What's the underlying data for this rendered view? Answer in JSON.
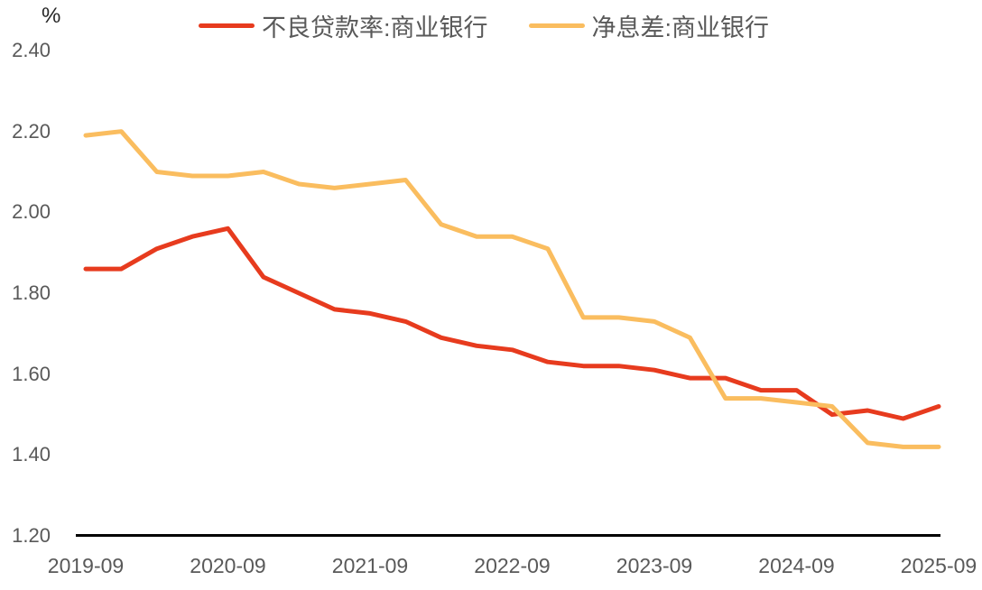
{
  "chart_data": {
    "type": "line",
    "title": "",
    "ylabel": "%",
    "xlabel": "",
    "grid": false,
    "legend_position": "top-center",
    "ylim": [
      1.2,
      2.4
    ],
    "ytick_step": 0.2,
    "ytick_labels": [
      "2.40",
      "2.20",
      "2.00",
      "1.80",
      "1.60",
      "1.40",
      "1.20"
    ],
    "x": [
      "2019-09",
      "2019-12",
      "2020-03",
      "2020-06",
      "2020-09",
      "2020-12",
      "2021-03",
      "2021-06",
      "2021-09",
      "2021-12",
      "2022-03",
      "2022-06",
      "2022-09",
      "2022-12",
      "2023-03",
      "2023-06",
      "2023-09",
      "2023-12",
      "2024-03",
      "2024-06",
      "2024-09",
      "2024-12",
      "2025-03",
      "2025-06",
      "2025-09"
    ],
    "xtick_labels": [
      "2019-09",
      "2020-09",
      "2021-09",
      "2022-09",
      "2023-09",
      "2024-09",
      "2025-09"
    ],
    "series": [
      {
        "name": "不良贷款率:商业银行",
        "color": "#E73B1E",
        "values": [
          1.86,
          1.86,
          1.91,
          1.94,
          1.96,
          1.84,
          1.8,
          1.76,
          1.75,
          1.73,
          1.69,
          1.67,
          1.66,
          1.63,
          1.62,
          1.62,
          1.61,
          1.59,
          1.59,
          1.56,
          1.56,
          1.5,
          1.51,
          1.49,
          1.52
        ]
      },
      {
        "name": "净息差:商业银行",
        "color": "#FABD5F",
        "values": [
          2.19,
          2.2,
          2.1,
          2.09,
          2.09,
          2.1,
          2.07,
          2.06,
          2.07,
          2.08,
          1.97,
          1.94,
          1.94,
          1.91,
          1.74,
          1.74,
          1.73,
          1.69,
          1.54,
          1.54,
          1.53,
          1.52,
          1.43,
          1.42,
          1.42
        ]
      }
    ]
  },
  "colors": {
    "axis_text": "#595959",
    "unit_text": "#262626",
    "axis_line": "#000000",
    "background": "#ffffff"
  }
}
